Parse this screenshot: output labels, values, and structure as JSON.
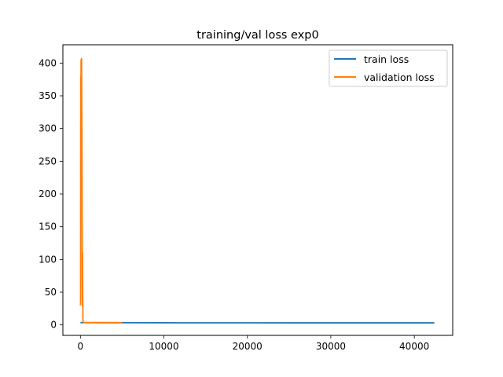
{
  "chart_data": {
    "type": "line",
    "title": "training/val loss exp0",
    "xlabel": "",
    "ylabel": "",
    "xlim": [
      -2100,
      44600
    ],
    "ylim": [
      -16,
      428
    ],
    "xticks": [
      0,
      10000,
      20000,
      30000,
      40000
    ],
    "yticks": [
      0,
      50,
      100,
      150,
      200,
      250,
      300,
      350,
      400
    ],
    "grid": false,
    "legend_position": "top-right",
    "series": [
      {
        "name": "train loss",
        "color": "#1f77b4",
        "x": [
          0,
          2000,
          5000,
          10000,
          12000,
          15000,
          20000,
          25000,
          30000,
          33000,
          36000,
          40000,
          42400
        ],
        "y": [
          3.5,
          3.4,
          3.4,
          3.3,
          3.2,
          3.2,
          3.2,
          3.1,
          3.1,
          3.1,
          3.1,
          3.1,
          3.1
        ]
      },
      {
        "name": "validation loss",
        "color": "#ff7f0e",
        "x": [
          0,
          20,
          40,
          60,
          80,
          100,
          120,
          140,
          160,
          180,
          200,
          220,
          240,
          260,
          280,
          300,
          320,
          350,
          400,
          500,
          1000,
          2000,
          3000,
          4000,
          5000
        ],
        "y": [
          30,
          35,
          380,
          320,
          405,
          395,
          310,
          407,
          340,
          300,
          200,
          60,
          30,
          110,
          50,
          8,
          5,
          4,
          3.8,
          3.6,
          3.5,
          3.4,
          3.4,
          3.3,
          3.3
        ]
      }
    ]
  }
}
